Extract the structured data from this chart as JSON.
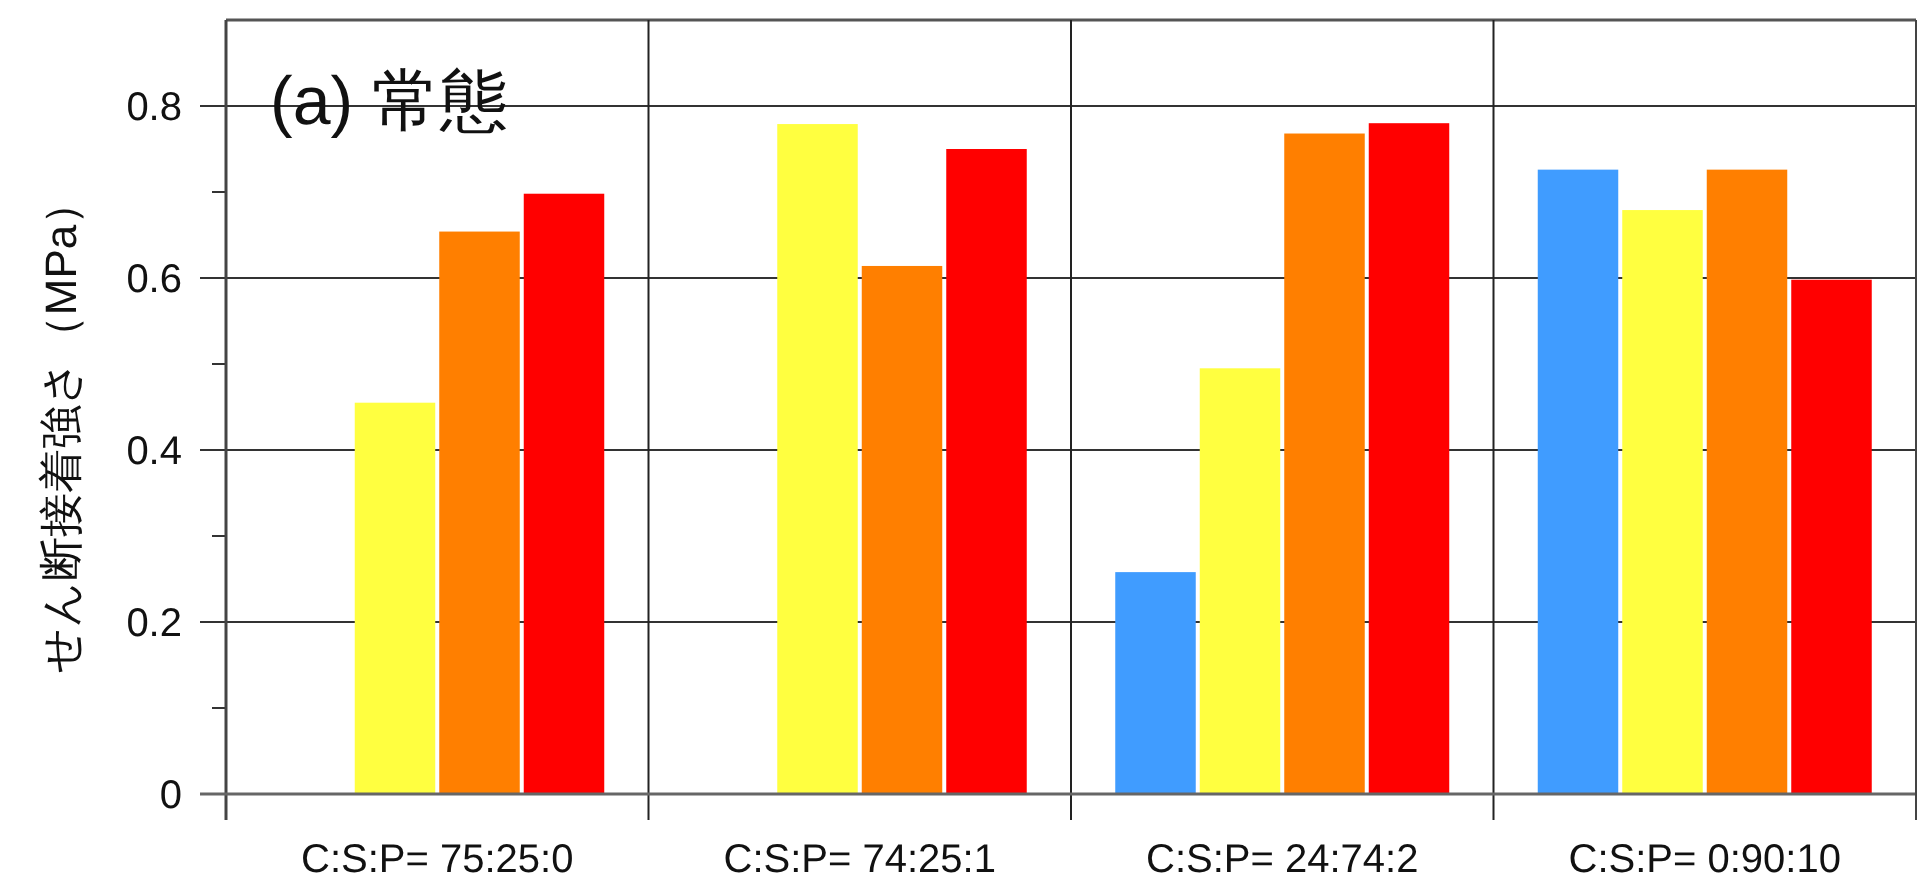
{
  "chart_data": {
    "type": "bar",
    "title": "(a) 常態",
    "ylabel": "せん断接着強さ（MPa）",
    "categories": [
      "C:S:P= 75:25:0",
      "C:S:P= 74:25:1",
      "C:S:P= 24:74:2",
      "C:S:P= 0:90:10"
    ],
    "series": [
      {
        "color": "#409cff",
        "values": [
          null,
          null,
          0.258,
          0.726
        ]
      },
      {
        "color": "#ffff40",
        "values": [
          0.455,
          0.779,
          0.495,
          0.679
        ]
      },
      {
        "color": "#ff7f00",
        "values": [
          0.654,
          0.614,
          0.768,
          0.726
        ]
      },
      {
        "color": "#ff0000",
        "values": [
          0.698,
          0.75,
          0.78,
          0.598
        ]
      }
    ],
    "ylim": [
      0,
      0.9
    ],
    "yticks": [
      0,
      {
        "value": 0.1,
        "label": null
      },
      0.2,
      {
        "value": 0.3,
        "label": null
      },
      0.4,
      {
        "value": 0.5,
        "label": null
      },
      0.6,
      {
        "value": 0.7,
        "label": null
      },
      0.8
    ],
    "grid": true
  }
}
